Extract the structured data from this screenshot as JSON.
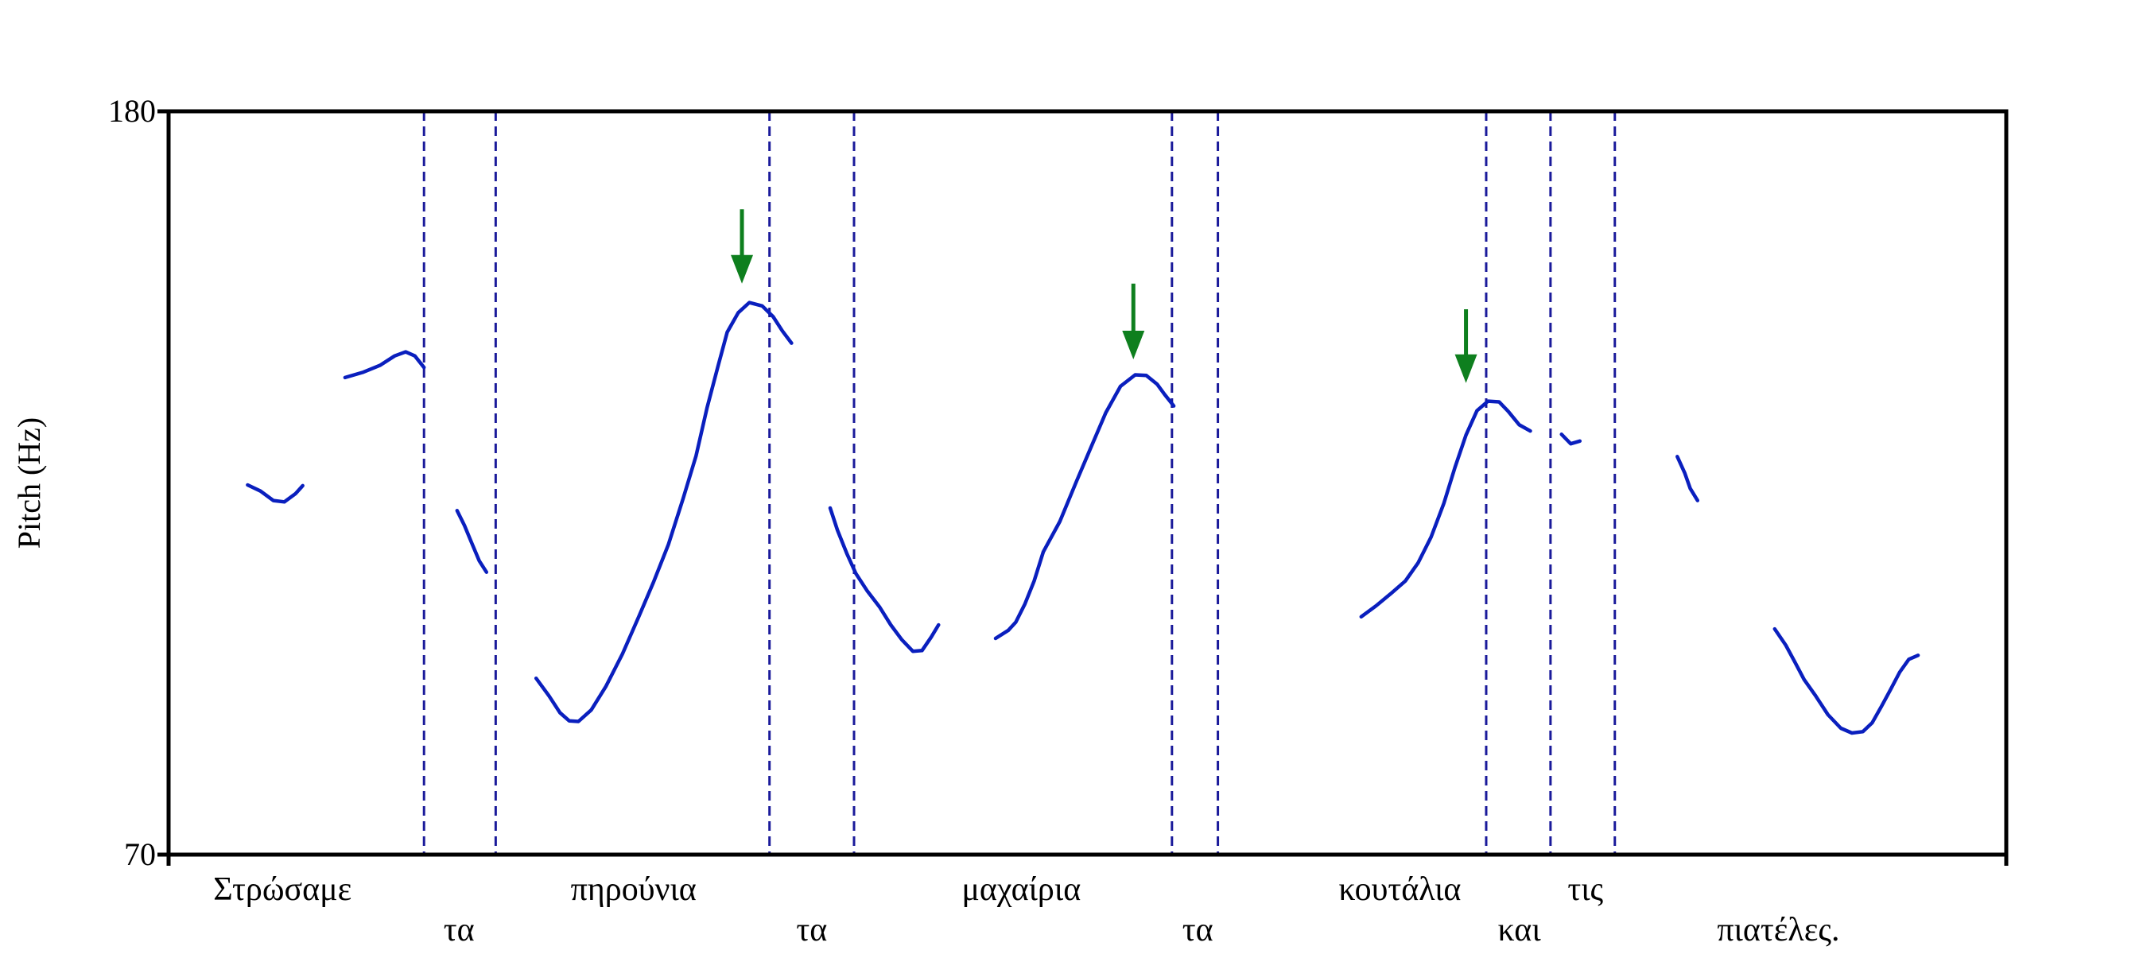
{
  "chart_data": {
    "type": "line",
    "title": "",
    "xlabel": "",
    "ylabel": "Pitch (Hz)",
    "ylim": [
      70,
      180
    ],
    "ytick_labels": [
      "180",
      "70"
    ],
    "xlim": [
      0,
      100
    ],
    "grid": false,
    "series_color": "#0a1fbe",
    "boundary_color": "#1a1a9a",
    "arrow_color": "#0e7f1e",
    "boundaries": [
      13.9,
      17.8,
      32.7,
      37.3,
      54.6,
      57.1,
      71.7,
      75.2,
      78.7
    ],
    "words": [
      {
        "text": "Στρώσαμε",
        "x": 6.2,
        "row": 0
      },
      {
        "text": "τα",
        "x": 15.8,
        "row": 1
      },
      {
        "text": "πηρούνια",
        "x": 25.3,
        "row": 0
      },
      {
        "text": "τα",
        "x": 35.0,
        "row": 1
      },
      {
        "text": "μαχαίρια",
        "x": 46.4,
        "row": 0
      },
      {
        "text": "τα",
        "x": 56.0,
        "row": 1
      },
      {
        "text": "κουτάλια",
        "x": 67.0,
        "row": 0
      },
      {
        "text": "και",
        "x": 73.5,
        "row": 1
      },
      {
        "text": "τις",
        "x": 77.1,
        "row": 0
      },
      {
        "text": "πιατέλες.",
        "x": 87.6,
        "row": 1
      }
    ],
    "arrows": [
      {
        "x": 31.2,
        "y_top": 165.5,
        "y_tip": 154.5
      },
      {
        "x": 52.5,
        "y_top": 154.5,
        "y_tip": 143.3
      },
      {
        "x": 70.6,
        "y_top": 150.7,
        "y_tip": 139.8
      }
    ],
    "series": [
      {
        "segments": [
          [
            [
              4.3,
              124.7
            ],
            [
              5.0,
              123.8
            ],
            [
              5.7,
              122.4
            ],
            [
              6.3,
              122.2
            ],
            [
              6.9,
              123.4
            ],
            [
              7.3,
              124.6
            ]
          ],
          [
            [
              9.6,
              140.6
            ],
            [
              10.6,
              141.4
            ],
            [
              11.5,
              142.4
            ],
            [
              12.3,
              143.8
            ],
            [
              12.9,
              144.4
            ],
            [
              13.4,
              143.8
            ],
            [
              13.9,
              142.1
            ]
          ],
          [
            [
              15.7,
              120.9
            ],
            [
              16.1,
              118.7
            ],
            [
              16.5,
              116.1
            ],
            [
              16.9,
              113.5
            ],
            [
              17.3,
              111.8
            ]
          ],
          [
            [
              20.0,
              96.1
            ],
            [
              20.7,
              93.5
            ],
            [
              21.3,
              91.0
            ],
            [
              21.8,
              89.8
            ],
            [
              22.3,
              89.7
            ],
            [
              23.0,
              91.4
            ],
            [
              23.8,
              94.9
            ],
            [
              24.7,
              99.7
            ],
            [
              25.6,
              105.3
            ],
            [
              26.4,
              110.4
            ],
            [
              27.2,
              115.9
            ],
            [
              28.0,
              122.7
            ],
            [
              28.7,
              129.0
            ],
            [
              29.3,
              136.1
            ],
            [
              29.9,
              142.3
            ],
            [
              30.4,
              147.3
            ],
            [
              31.0,
              150.2
            ],
            [
              31.6,
              151.7
            ],
            [
              32.3,
              151.2
            ],
            [
              32.9,
              149.6
            ],
            [
              33.4,
              147.5
            ],
            [
              33.9,
              145.7
            ]
          ],
          [
            [
              36.0,
              121.3
            ],
            [
              36.4,
              118.0
            ],
            [
              36.9,
              114.6
            ],
            [
              37.4,
              111.6
            ],
            [
              38.0,
              109.1
            ],
            [
              38.7,
              106.6
            ],
            [
              39.3,
              104.0
            ],
            [
              39.9,
              101.8
            ],
            [
              40.5,
              100.1
            ],
            [
              41.0,
              100.2
            ],
            [
              41.5,
              102.2
            ],
            [
              41.9,
              104.0
            ]
          ],
          [
            [
              45.0,
              102.0
            ],
            [
              45.7,
              103.2
            ],
            [
              46.1,
              104.4
            ],
            [
              46.6,
              107.1
            ],
            [
              47.1,
              110.5
            ],
            [
              47.6,
              114.8
            ],
            [
              48.5,
              119.3
            ],
            [
              49.4,
              125.2
            ],
            [
              50.2,
              130.3
            ],
            [
              51.0,
              135.4
            ],
            [
              51.8,
              139.3
            ],
            [
              52.6,
              141.0
            ],
            [
              53.2,
              140.9
            ],
            [
              53.8,
              139.6
            ],
            [
              54.2,
              138.1
            ],
            [
              54.7,
              136.4
            ]
          ],
          [
            [
              64.9,
              105.2
            ],
            [
              65.7,
              106.8
            ],
            [
              66.5,
              108.6
            ],
            [
              67.3,
              110.5
            ],
            [
              68.0,
              113.2
            ],
            [
              68.7,
              117.0
            ],
            [
              69.4,
              122.0
            ],
            [
              70.0,
              127.3
            ],
            [
              70.6,
              132.1
            ],
            [
              71.2,
              135.7
            ],
            [
              71.8,
              137.1
            ],
            [
              72.4,
              137.0
            ],
            [
              72.9,
              135.6
            ],
            [
              73.5,
              133.6
            ],
            [
              74.1,
              132.7
            ]
          ],
          [
            [
              75.8,
              132.2
            ],
            [
              76.3,
              130.8
            ],
            [
              76.8,
              131.2
            ]
          ],
          [
            [
              82.1,
              128.9
            ],
            [
              82.5,
              126.5
            ],
            [
              82.8,
              124.2
            ],
            [
              83.2,
              122.4
            ]
          ],
          [
            [
              87.4,
              103.4
            ],
            [
              88.0,
              101.0
            ],
            [
              88.5,
              98.5
            ],
            [
              89.0,
              95.9
            ],
            [
              89.6,
              93.6
            ],
            [
              90.3,
              90.7
            ],
            [
              91.0,
              88.7
            ],
            [
              91.6,
              88.0
            ],
            [
              92.2,
              88.2
            ],
            [
              92.7,
              89.5
            ],
            [
              93.2,
              91.9
            ],
            [
              93.7,
              94.4
            ],
            [
              94.2,
              97.0
            ],
            [
              94.7,
              98.9
            ],
            [
              95.2,
              99.5
            ]
          ]
        ]
      }
    ]
  }
}
